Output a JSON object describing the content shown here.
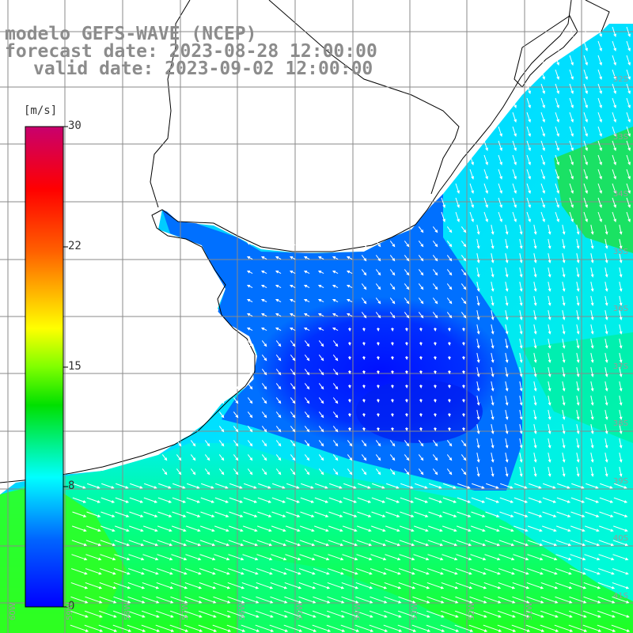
{
  "title": {
    "line1": "modelo GEFS-WAVE (NCEP)",
    "line2": "forecast date: 2023-08-28 12:00:00",
    "line3": "valid date: 2023-09-02 12:00:00"
  },
  "legend": {
    "unit": "[m/s]",
    "ticks": [
      "30",
      "22",
      "15",
      "8",
      "0"
    ],
    "tick_values": [
      30,
      22,
      15,
      8,
      0
    ],
    "range": [
      0,
      30
    ],
    "colors": [
      "#0000ff",
      "#00c8ff",
      "#00ff00",
      "#ffff00",
      "#ff8000",
      "#ff0000",
      "#c8006e"
    ]
  },
  "map": {
    "lat_labels": [
      "32S",
      "33S",
      "34S",
      "35S",
      "36S",
      "37S",
      "38S",
      "39S",
      "40S",
      "41S"
    ],
    "lon_labels": [
      "60W",
      "59W",
      "58W",
      "57W",
      "56W",
      "55W",
      "54W",
      "53W",
      "52W",
      "51W"
    ],
    "land_color": "#ffffff",
    "grid_color": "#9a9a9a",
    "coast_color": "#000000"
  }
}
